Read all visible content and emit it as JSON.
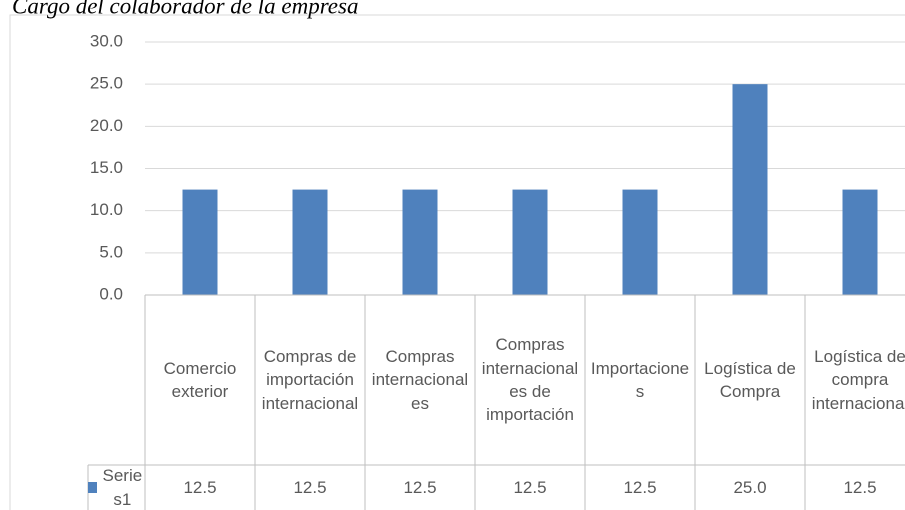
{
  "chart_data": {
    "type": "bar",
    "title": "Cargo del colaborador de la empresa",
    "categories": [
      "Comercio exterior",
      "Compras de importación internacional",
      "Compras internacionales",
      "Compras internacionales de importación",
      "Importaciones",
      "Logística de Compra",
      "Logística de compra internacional"
    ],
    "series": [
      {
        "name": "Series1",
        "color": "#4f81bd",
        "values": [
          12.5,
          12.5,
          12.5,
          12.5,
          12.5,
          25,
          12.5
        ],
        "value_labels": [
          "12.5",
          "12.5",
          "12.5",
          "12.5",
          "12.5",
          "25.0",
          "12.5"
        ]
      }
    ],
    "ylim": [
      0,
      30
    ],
    "yticks": [
      {
        "value": 0,
        "label": "0.0"
      },
      {
        "value": 5,
        "label": "5.0"
      },
      {
        "value": 10,
        "label": "10.0"
      },
      {
        "value": 15,
        "label": "15.0"
      },
      {
        "value": 20,
        "label": "20.0"
      },
      {
        "value": 25,
        "label": "25.0"
      },
      {
        "value": 30,
        "label": "30.0"
      }
    ],
    "grid": true
  }
}
